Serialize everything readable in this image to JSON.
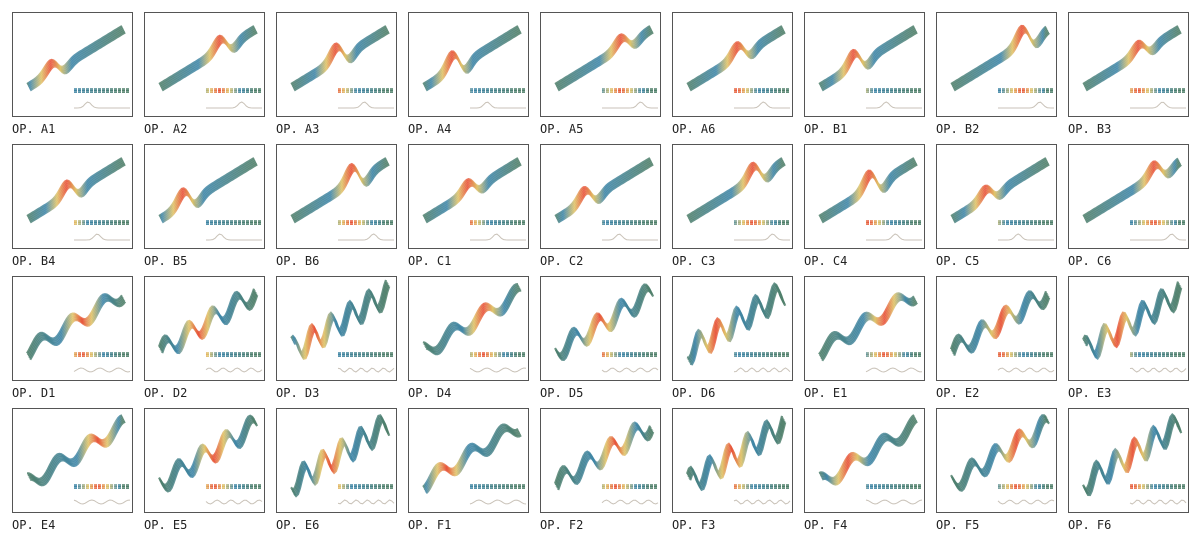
{
  "panels": [
    "OP. A1",
    "OP. A2",
    "OP. A3",
    "OP. A4",
    "OP. A5",
    "OP. A6",
    "OP. B1",
    "OP. B2",
    "OP. B3",
    "OP. B4",
    "OP. B5",
    "OP. B6",
    "OP. C1",
    "OP. C2",
    "OP. C3",
    "OP. C4",
    "OP. C5",
    "OP. C6",
    "OP. D1",
    "OP. D2",
    "OP. D3",
    "OP. D4",
    "OP. D5",
    "OP. D6",
    "OP. E1",
    "OP. E2",
    "OP. E3",
    "OP. E4",
    "OP. E5",
    "OP. E6",
    "OP. F1",
    "OP. F2",
    "OP. F3",
    "OP. F4",
    "OP. F5",
    "OP. F6"
  ]
}
